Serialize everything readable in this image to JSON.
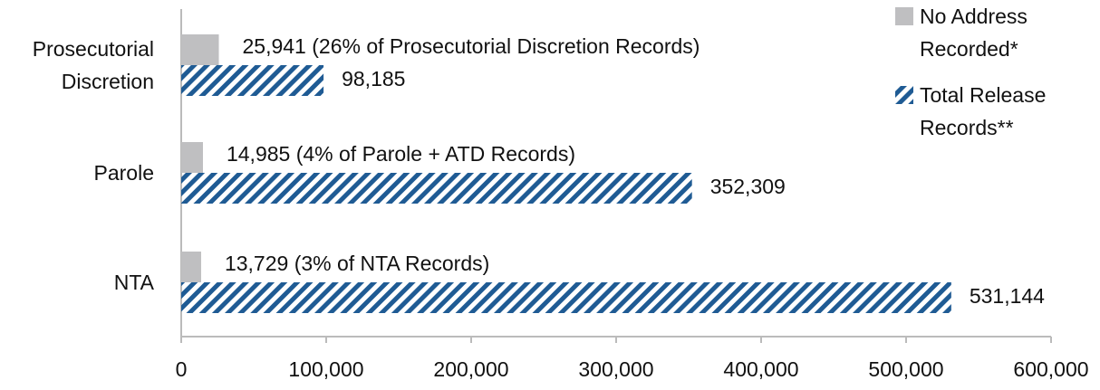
{
  "chart_data": {
    "type": "hbar",
    "categories": [
      "Prosecutorial Discretion",
      "Parole",
      "NTA"
    ],
    "series": [
      {
        "name": "No Address Recorded*",
        "color": "#bfbfc1",
        "pattern": "solid",
        "values": [
          25941,
          14985,
          13729
        ],
        "value_labels": [
          "25,941 (26% of Prosecutorial Discretion Records)",
          "14,985 (4% of Parole + ATD Records)",
          "13,729 (3% of NTA Records)"
        ]
      },
      {
        "name": "Total Release Records**",
        "color": "#1f5b94",
        "pattern": "hatch",
        "values": [
          98185,
          352309,
          531144
        ],
        "value_labels": [
          "98,185",
          "352,309",
          "531,144"
        ]
      }
    ],
    "xlim": [
      0,
      600000
    ],
    "xticks": [
      0,
      {
        "value": 100000,
        "label": "100,000"
      },
      {
        "value": 200000,
        "label": "200,000"
      },
      {
        "value": 300000,
        "label": "300,000"
      },
      {
        "value": 400000,
        "label": "400,000"
      },
      {
        "value": 500000,
        "label": "500,000"
      },
      {
        "value": 600000,
        "label": "600,000"
      }
    ],
    "legend": "upper right"
  }
}
